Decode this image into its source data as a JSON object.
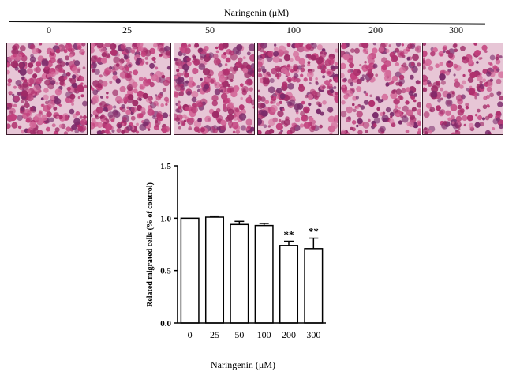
{
  "figure": {
    "panel_title": "Naringenin (μM)",
    "micrographs": [
      {
        "concentration": "0",
        "stain_density": 0.92
      },
      {
        "concentration": "25",
        "stain_density": 0.9
      },
      {
        "concentration": "50",
        "stain_density": 0.86
      },
      {
        "concentration": "100",
        "stain_density": 0.86
      },
      {
        "concentration": "200",
        "stain_density": 0.66
      },
      {
        "concentration": "300",
        "stain_density": 0.55
      }
    ],
    "stain_colors": [
      "#b0306e",
      "#9e2a66",
      "#c23f7c",
      "#7a2a6a",
      "#d46a9a"
    ],
    "background_color": "#e7c6d6"
  },
  "chart_data": {
    "type": "bar",
    "categories": [
      "0",
      "25",
      "50",
      "100",
      "200",
      "300"
    ],
    "values": [
      1.0,
      1.01,
      0.94,
      0.93,
      0.74,
      0.71
    ],
    "errors": [
      0.0,
      0.01,
      0.03,
      0.02,
      0.04,
      0.1
    ],
    "annotations": [
      "",
      "",
      "",
      "",
      "**",
      "**"
    ],
    "xlabel": "Naringenin (μM)",
    "ylabel": "Related migrated cells (% of control)",
    "ylim": [
      0.0,
      1.5
    ],
    "yticks": [
      "0.0",
      "0.5",
      "1.0",
      "1.5"
    ],
    "grid": false,
    "bar_fill": "#ffffff",
    "bar_stroke": "#000000"
  }
}
